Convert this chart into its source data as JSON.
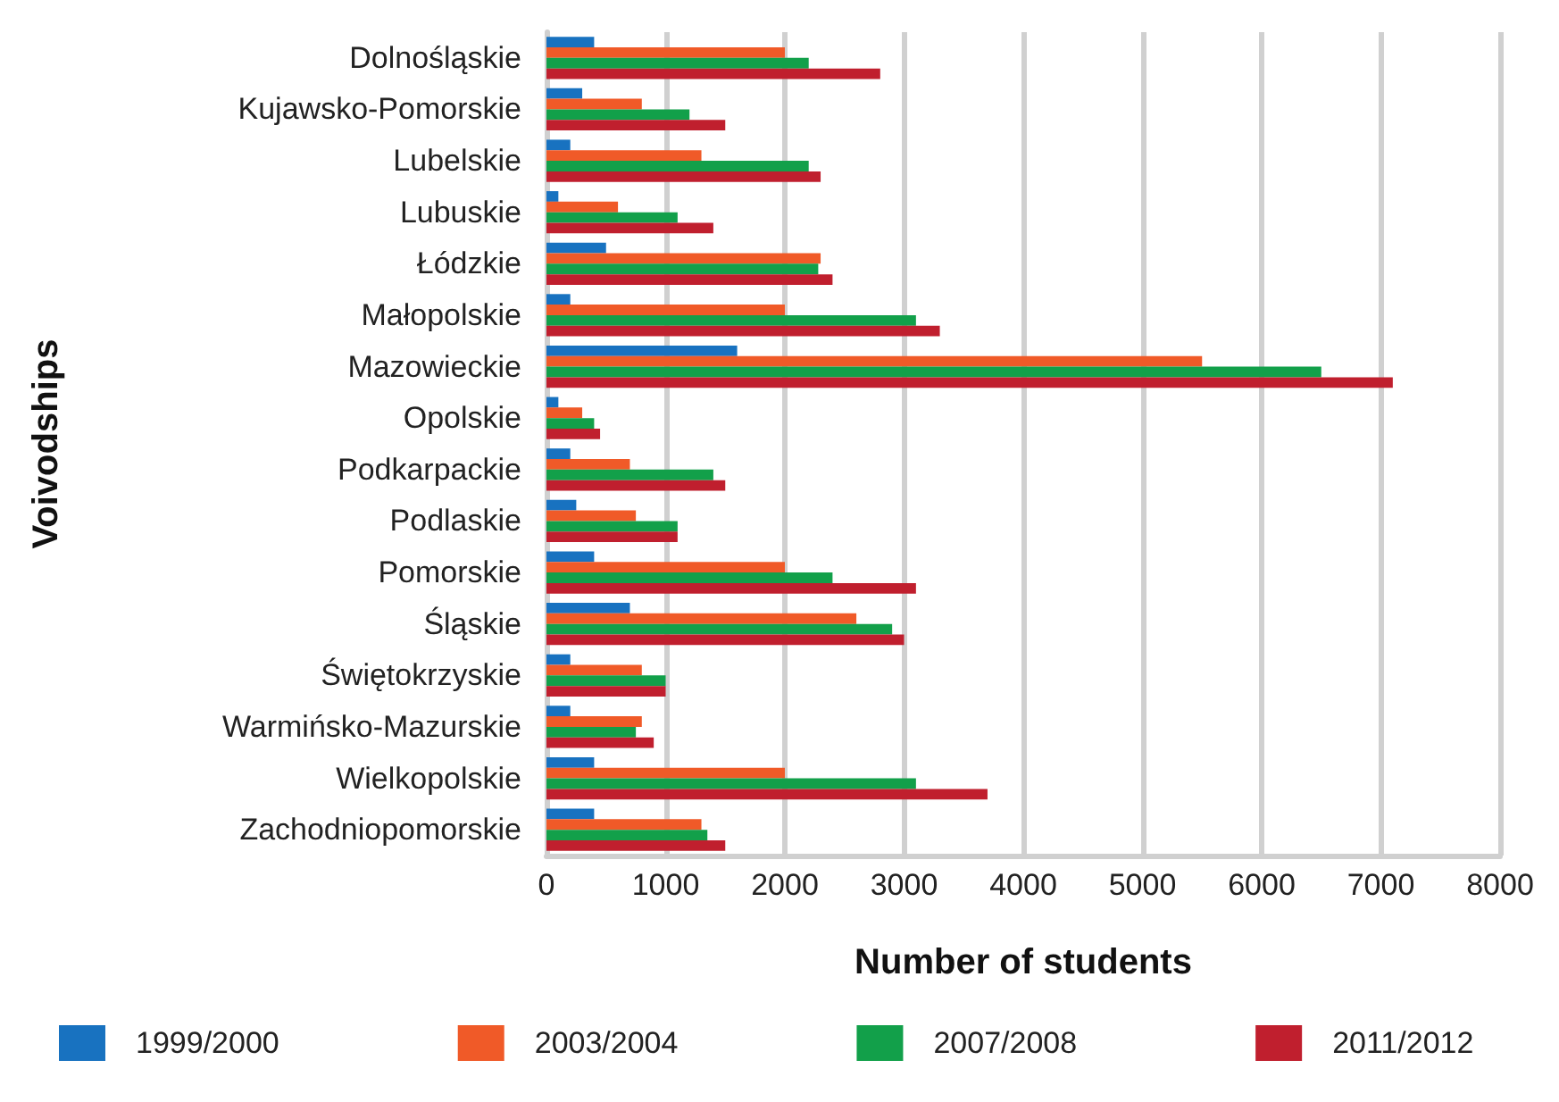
{
  "chart_data": {
    "type": "bar",
    "orientation": "horizontal",
    "xlabel": "Number of students",
    "ylabel": "Voivodships",
    "categories": [
      "Dolnośląskie",
      "Kujawsko-Pomorskie",
      "Lubelskie",
      "Lubuskie",
      "Łódzkie",
      "Małopolskie",
      "Mazowieckie",
      "Opolskie",
      "Podkarpackie",
      "Podlaskie",
      "Pomorskie",
      "Śląskie",
      "Świętokrzyskie",
      "Warmińsko-Mazurskie",
      "Wielkopolskie",
      "Zachodniopomorskie"
    ],
    "series": [
      {
        "name": "1999/2000",
        "color": "#1872c0",
        "values": [
          400,
          300,
          200,
          100,
          500,
          200,
          1600,
          100,
          200,
          250,
          400,
          700,
          200,
          200,
          400,
          400
        ]
      },
      {
        "name": "2003/2004",
        "color": "#f05a28",
        "values": [
          2000,
          800,
          1300,
          600,
          2300,
          2000,
          5500,
          300,
          700,
          750,
          2000,
          2600,
          800,
          800,
          2000,
          1300
        ]
      },
      {
        "name": "2007/2008",
        "color": "#12a04a",
        "values": [
          2200,
          1200,
          2200,
          1100,
          2280,
          3100,
          6500,
          400,
          1400,
          1100,
          2400,
          2900,
          1000,
          750,
          3100,
          1350
        ]
      },
      {
        "name": "2011/2012",
        "color": "#c01f2e",
        "values": [
          2800,
          1500,
          2300,
          1400,
          2400,
          3300,
          7100,
          450,
          1500,
          1100,
          3100,
          3000,
          1000,
          900,
          3700,
          1500
        ]
      }
    ],
    "xlim": [
      0,
      8000
    ],
    "xticks": [
      0,
      1000,
      2000,
      3000,
      4000,
      5000,
      6000,
      7000,
      8000
    ],
    "grid": "x",
    "legend": "bottom"
  }
}
